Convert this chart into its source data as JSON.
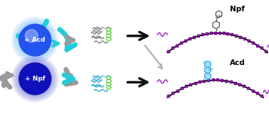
{
  "bg_color": "#ffffff",
  "acd_circle_color": "#2255ee",
  "acd_circle_glow": "#55aaff",
  "npf_circle_color": "#1111bb",
  "npf_circle_glow": "#3333cc",
  "acd_label": "+ Acd",
  "npf_label": "+ Npf",
  "npf_text": "Npf",
  "acd_text": "Acd",
  "arrow_solid_color": "#111111",
  "arrow_dashed_color": "#aaaaaa",
  "cyan_arrow_color": "#22ccdd",
  "gray_arrow_color": "#999999",
  "peptide_line_color": "#000000",
  "peptide_dot_color": "#9900bb",
  "peptide_tail_color": "#aa44cc",
  "protein_color_top": "#777777",
  "protein_color_bottom": "#22aacc",
  "helix_green": "#55cc33",
  "npf_molecule_color": "#555555",
  "acd_molecule_color": "#33aadd",
  "acd_fill_color": "#aaddff"
}
